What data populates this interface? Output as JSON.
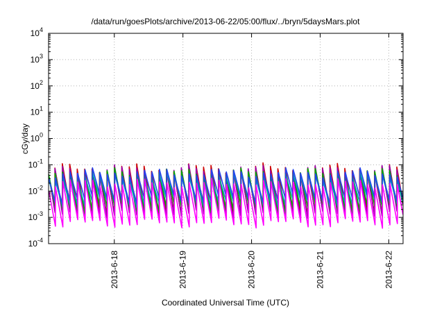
{
  "chart_data": {
    "type": "line",
    "title": "/data/run/goesPlots/archive/2013-06-22/05:00/flux/../bryn/5daysMars.plot",
    "xlabel": "Coordinated Universal Time (UTC)",
    "ylabel": "cGy/day",
    "yscale": "log",
    "ylim": [
      0.0001,
      10000
    ],
    "xlim": [
      "2013-06-17T01:00",
      "2013-06-22T05:00"
    ],
    "y_ticks": [
      {
        "value": 0.0001,
        "base": "10",
        "exp": "-4"
      },
      {
        "value": 0.001,
        "base": "10",
        "exp": "-3"
      },
      {
        "value": 0.01,
        "base": "10",
        "exp": "-2"
      },
      {
        "value": 0.1,
        "base": "10",
        "exp": "-1"
      },
      {
        "value": 1,
        "base": "10",
        "exp": "0"
      },
      {
        "value": 10,
        "base": "10",
        "exp": "1"
      },
      {
        "value": 100,
        "base": "10",
        "exp": "2"
      },
      {
        "value": 1000,
        "base": "10",
        "exp": "3"
      },
      {
        "value": 10000,
        "base": "10",
        "exp": "4"
      }
    ],
    "x_ticks": [
      "2013-6-18",
      "2013-6-19",
      "2013-6-20",
      "2013-6-21",
      "2013-6-22"
    ],
    "x_tick_dates": [
      "2013-06-18T00:00",
      "2013-06-19T00:00",
      "2013-06-20T00:00",
      "2013-06-21T00:00",
      "2013-06-22T00:00"
    ],
    "grid": true,
    "sawtooth_period_hours": 2.6,
    "series": [
      {
        "color": "#cc0000",
        "peak": 0.075,
        "trough": 0.0018
      },
      {
        "color": "#9900aa",
        "peak": 0.065,
        "trough": 0.0012
      },
      {
        "color": "#00aa00",
        "peak": 0.05,
        "trough": 0.0022
      },
      {
        "color": "#00aaaa",
        "peak": 0.035,
        "trough": 0.0035
      },
      {
        "color": "#2244ee",
        "peak": 0.05,
        "trough": 0.0045
      },
      {
        "color": "#ff00ff",
        "peak": 0.02,
        "trough": 0.0006
      }
    ]
  }
}
